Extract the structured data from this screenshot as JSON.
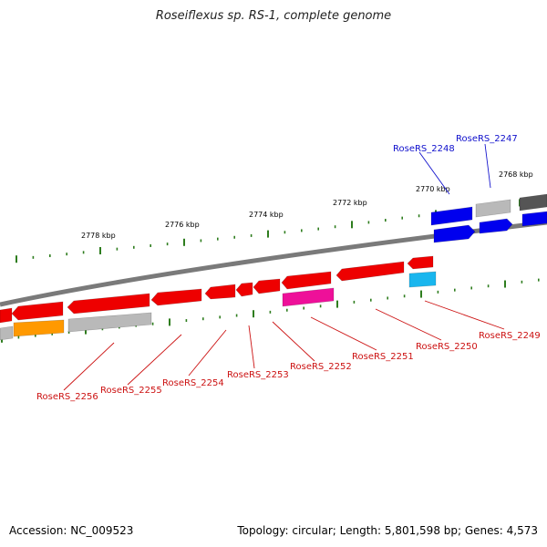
{
  "title": "Roseiflexus sp. RS-1, complete genome",
  "accession": "Accession: NC_009523",
  "topology": "Topology: circular; Length: 5,801,598 bp; Genes: 4,573",
  "colors": {
    "backbone": "#7a7a7a",
    "tick": "#2e7d1e",
    "forward_label": "#1010cc",
    "reverse_label": "#cc1111",
    "gene_red": "#ee0000",
    "gene_blue": "#0000ee",
    "gene_gray": "#b9b9b9",
    "gene_darkgray": "#555555",
    "gene_orange": "#ff9900",
    "gene_magenta": "#ee1099",
    "gene_cyan": "#19b6ee"
  },
  "scale_labels": [
    "2778 kbp",
    "2776 kbp",
    "2774 kbp",
    "2772 kbp",
    "2770 kbp",
    "2768 kbp"
  ],
  "gene_labels_forward": [
    "RoseRS_2248",
    "RoseRS_2247"
  ],
  "gene_labels_reverse": [
    "RoseRS_2256",
    "RoseRS_2255",
    "RoseRS_2254",
    "RoseRS_2253",
    "RoseRS_2252",
    "RoseRS_2251",
    "RoseRS_2250",
    "RoseRS_2249"
  ]
}
